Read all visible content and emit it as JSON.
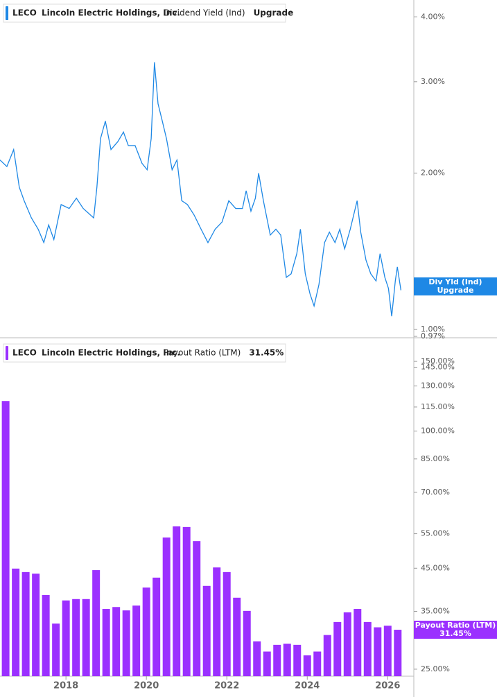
{
  "chart_data": [
    {
      "type": "line",
      "legend": {
        "ticker": "LECO",
        "company": "Lincoln Electric Holdings, Inc.",
        "series": "Dividend Yield (Ind)",
        "value": "Upgrade"
      },
      "color": "#1e88e5",
      "log_scale": true,
      "xlim": [
        2016.36,
        2026.65
      ],
      "ylim": [
        0.97,
        4.31
      ],
      "yticks": [
        {
          "value": 4,
          "label": "4.00%"
        },
        {
          "value": 3,
          "label": "3.00%"
        },
        {
          "value": 2,
          "label": "2.00%"
        },
        {
          "value": 1,
          "label": "1.00%"
        },
        {
          "value": 0.97,
          "label": "0.97%"
        }
      ],
      "x": [
        2016.36,
        2016.53,
        2016.7,
        2016.84,
        2016.96,
        2017.14,
        2017.31,
        2017.45,
        2017.57,
        2017.7,
        2017.88,
        2018.08,
        2018.26,
        2018.43,
        2018.69,
        2018.77,
        2018.86,
        2018.98,
        2019.12,
        2019.29,
        2019.43,
        2019.55,
        2019.72,
        2019.89,
        2020.02,
        2020.12,
        2020.2,
        2020.29,
        2020.38,
        2020.5,
        2020.64,
        2020.76,
        2020.88,
        2021.02,
        2021.19,
        2021.36,
        2021.53,
        2021.71,
        2021.88,
        2022.05,
        2022.22,
        2022.39,
        2022.48,
        2022.6,
        2022.71,
        2022.79,
        2022.91,
        2023.08,
        2023.22,
        2023.34,
        2023.48,
        2023.6,
        2023.74,
        2023.83,
        2023.95,
        2024.07,
        2024.17,
        2024.29,
        2024.43,
        2024.55,
        2024.69,
        2024.81,
        2024.93,
        2025.07,
        2025.24,
        2025.33,
        2025.46,
        2025.58,
        2025.71,
        2025.81,
        2025.93,
        2026.02,
        2026.1,
        2026.19,
        2026.24,
        2026.33
      ],
      "values": [
        2.12,
        2.06,
        2.22,
        1.88,
        1.77,
        1.64,
        1.56,
        1.47,
        1.59,
        1.49,
        1.74,
        1.71,
        1.79,
        1.71,
        1.64,
        1.88,
        2.33,
        2.52,
        2.22,
        2.3,
        2.4,
        2.26,
        2.26,
        2.09,
        2.03,
        2.33,
        3.27,
        2.72,
        2.55,
        2.33,
        2.03,
        2.12,
        1.77,
        1.74,
        1.66,
        1.56,
        1.47,
        1.56,
        1.61,
        1.77,
        1.71,
        1.71,
        1.85,
        1.69,
        1.79,
        2.0,
        1.77,
        1.52,
        1.56,
        1.52,
        1.26,
        1.28,
        1.4,
        1.56,
        1.28,
        1.17,
        1.11,
        1.22,
        1.47,
        1.54,
        1.47,
        1.56,
        1.43,
        1.56,
        1.77,
        1.54,
        1.36,
        1.28,
        1.24,
        1.4,
        1.26,
        1.2,
        1.06,
        1.24,
        1.32,
        1.19
      ],
      "current_label": {
        "name": "Div Yld (Ind)",
        "value": "Upgrade"
      }
    },
    {
      "type": "bar",
      "legend": {
        "ticker": "LECO",
        "company": "Lincoln Electric Holdings, Inc.",
        "series": "Payout Ratio (LTM)",
        "value": "31.45%"
      },
      "color": "#9b30ff",
      "log_scale": true,
      "xlim": [
        2016.36,
        2026.65
      ],
      "xticks": [
        2018,
        2020,
        2022,
        2024,
        2026
      ],
      "ylim": [
        24,
        168
      ],
      "yticks": [
        {
          "value": 150,
          "label": "150.00%"
        },
        {
          "value": 145,
          "label": "145.00%"
        },
        {
          "value": 130,
          "label": "130.00%"
        },
        {
          "value": 115,
          "label": "115.00%"
        },
        {
          "value": 100,
          "label": "100.00%"
        },
        {
          "value": 85,
          "label": "85.00%"
        },
        {
          "value": 70,
          "label": "70.00%"
        },
        {
          "value": 55,
          "label": "55.00%"
        },
        {
          "value": 45,
          "label": "45.00%"
        },
        {
          "value": 35,
          "label": "35.00%"
        },
        {
          "value": 25,
          "label": "25.00%"
        }
      ],
      "x": [
        2016.5,
        2016.75,
        2017,
        2017.25,
        2017.5,
        2017.75,
        2018,
        2018.25,
        2018.5,
        2018.75,
        2019,
        2019.25,
        2019.5,
        2019.75,
        2020,
        2020.25,
        2020.5,
        2020.75,
        2021,
        2021.25,
        2021.5,
        2021.75,
        2022,
        2022.25,
        2022.5,
        2022.75,
        2023,
        2023.25,
        2023.5,
        2023.75,
        2024,
        2024.25,
        2024.5,
        2024.75,
        2025,
        2025.25,
        2025.5,
        2025.75,
        2026,
        2026.25
      ],
      "values": [
        119.1,
        44.9,
        44.0,
        43.6,
        38.5,
        32.6,
        37.3,
        37.6,
        37.6,
        44.5,
        35.5,
        35.9,
        35.2,
        36.2,
        40.2,
        42.6,
        53.8,
        57.4,
        57.2,
        52.7,
        40.6,
        45.2,
        44.0,
        37.9,
        35.1,
        29.4,
        27.7,
        28.8,
        29.0,
        28.8,
        27.1,
        27.7,
        30.5,
        32.9,
        34.8,
        35.5,
        32.9,
        31.9,
        32.2,
        31.45
      ],
      "current_label": {
        "name": "Payout Ratio (LTM)",
        "value": "31.45%"
      }
    }
  ]
}
